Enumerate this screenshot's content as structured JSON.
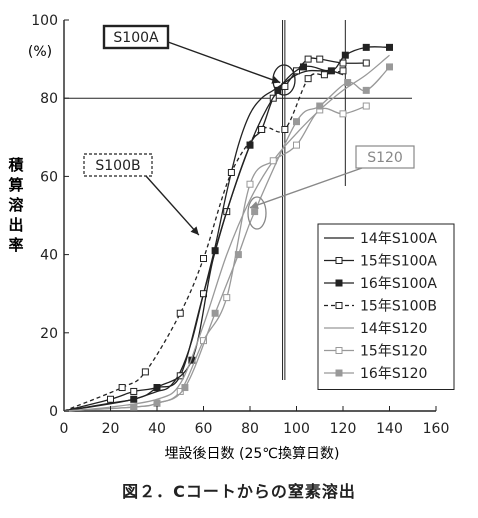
{
  "caption": "図２．Cコートからの窒素溶出",
  "chart_data": {
    "type": "line",
    "xlabel": "埋設後日数 (25℃換算日数)",
    "ylabel": "積算溶出率",
    "yunit": "(%)",
    "xlim": [
      0,
      160
    ],
    "ylim": [
      0,
      100
    ],
    "xticks": [
      0,
      20,
      40,
      60,
      80,
      100,
      120,
      140,
      160
    ],
    "yticks": [
      0,
      20,
      40,
      60,
      80,
      100
    ],
    "legend_position": "right-center",
    "reference_lines": {
      "y": [
        80
      ],
      "x": [
        94,
        95,
        121
      ]
    },
    "annotations": [
      {
        "text": "S100A",
        "style": "solid-box",
        "pointer_to": [
          93,
          84
        ]
      },
      {
        "text": "S100B",
        "style": "dashed-box",
        "pointer_to": [
          58,
          45
        ]
      },
      {
        "text": "S120",
        "style": "gray-box",
        "pointer_to": [
          80,
          52
        ]
      }
    ],
    "series": [
      {
        "name": "14年S100A",
        "color": "#222222",
        "dash": "none",
        "marker": "none",
        "x": [
          0,
          20,
          30,
          40,
          45,
          50,
          55,
          60,
          65,
          70,
          75,
          80,
          85,
          90,
          95,
          100,
          105,
          110,
          115,
          120
        ],
        "y": [
          0,
          2,
          3,
          5,
          6,
          10,
          18,
          30,
          42,
          56,
          68,
          76,
          80,
          82,
          84,
          86,
          87,
          87,
          87,
          86
        ]
      },
      {
        "name": "15年S100A",
        "color": "#222222",
        "dash": "none",
        "marker": "open-square",
        "x": [
          0,
          20,
          30,
          40,
          50,
          60,
          70,
          80,
          85,
          90,
          95,
          100,
          105,
          110,
          120,
          130
        ],
        "y": [
          0,
          3,
          5,
          6,
          9,
          30,
          51,
          68,
          72,
          80,
          83,
          87,
          90,
          90,
          89,
          89
        ]
      },
      {
        "name": "16年S100A",
        "color": "#222222",
        "dash": "none",
        "marker": "filled-square",
        "x": [
          0,
          30,
          40,
          55,
          65,
          80,
          92,
          103,
          115,
          121,
          130,
          140
        ],
        "y": [
          0,
          3,
          6,
          13,
          41,
          68,
          82,
          88,
          87,
          91,
          93,
          93
        ]
      },
      {
        "name": "15年S100B",
        "color": "#222222",
        "dash": "dashed",
        "marker": "open-square",
        "x": [
          0,
          25,
          35,
          50,
          60,
          72,
          85,
          95,
          105,
          112,
          120
        ],
        "y": [
          0,
          6,
          10,
          25,
          39,
          61,
          72,
          72,
          85,
          86,
          87
        ]
      },
      {
        "name": "14年S120",
        "color": "#999999",
        "dash": "none",
        "marker": "none",
        "x": [
          0,
          20,
          40,
          50,
          60,
          70,
          80,
          90,
          100,
          110,
          120,
          130,
          140
        ],
        "y": [
          0,
          1,
          3,
          7,
          22,
          40,
          54,
          64,
          71,
          77,
          82,
          86,
          91
        ]
      },
      {
        "name": "15年S120",
        "color": "#999999",
        "dash": "none",
        "marker": "open-square",
        "x": [
          0,
          30,
          40,
          50,
          60,
          70,
          80,
          90,
          100,
          110,
          120,
          130
        ],
        "y": [
          0,
          1,
          2,
          5,
          18,
          29,
          58,
          64,
          68,
          77,
          76,
          78
        ]
      },
      {
        "name": "16年S120",
        "color": "#999999",
        "dash": "none",
        "marker": "filled-square",
        "x": [
          0,
          30,
          40,
          52,
          65,
          75,
          82,
          100,
          110,
          122,
          130,
          140
        ],
        "y": [
          0,
          1,
          2,
          6,
          25,
          40,
          51,
          74,
          78,
          84,
          82,
          88
        ]
      }
    ]
  }
}
